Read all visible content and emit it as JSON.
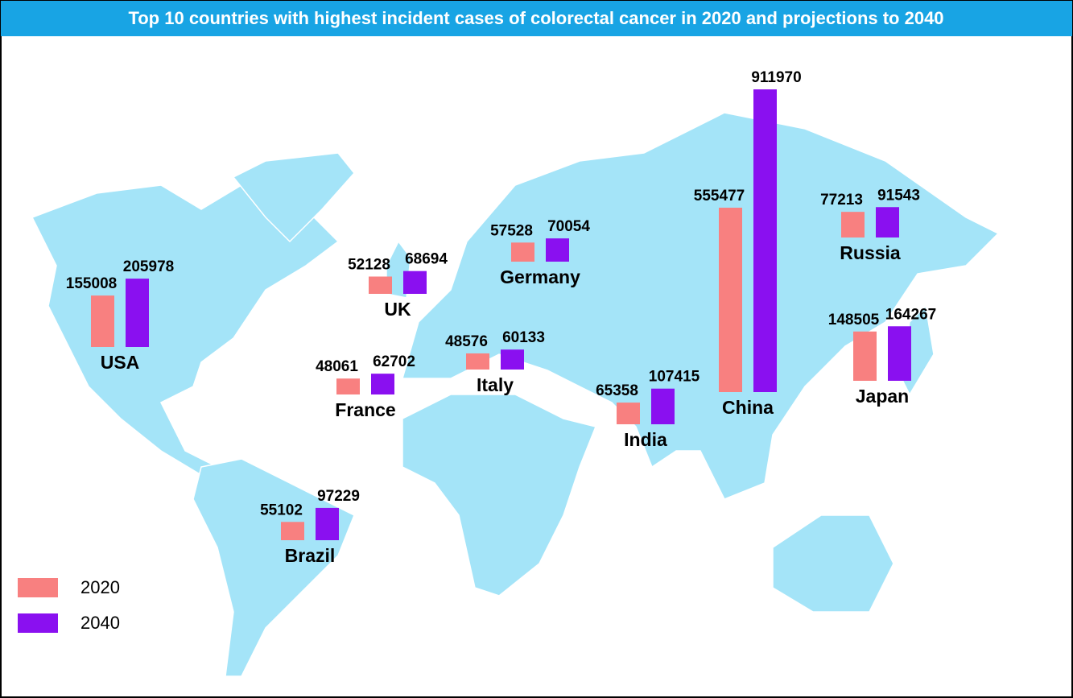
{
  "chart_data": {
    "type": "bar",
    "title": "Top 10 countries with highest incident cases of colorectal cancer in 2020 and projections to 2040",
    "categories": [
      "USA",
      "UK",
      "France",
      "Germany",
      "Italy",
      "India",
      "China",
      "Russia",
      "Japan",
      "Brazil"
    ],
    "series": [
      {
        "name": "2020",
        "color": "#f88080",
        "values": [
          155008,
          52128,
          48061,
          57528,
          48576,
          65358,
          555477,
          77213,
          148505,
          55102
        ]
      },
      {
        "name": "2040",
        "color": "#8a10f0",
        "values": [
          205978,
          68694,
          62702,
          70054,
          60133,
          107415,
          911970,
          91543,
          164267,
          97229
        ]
      }
    ]
  }
}
